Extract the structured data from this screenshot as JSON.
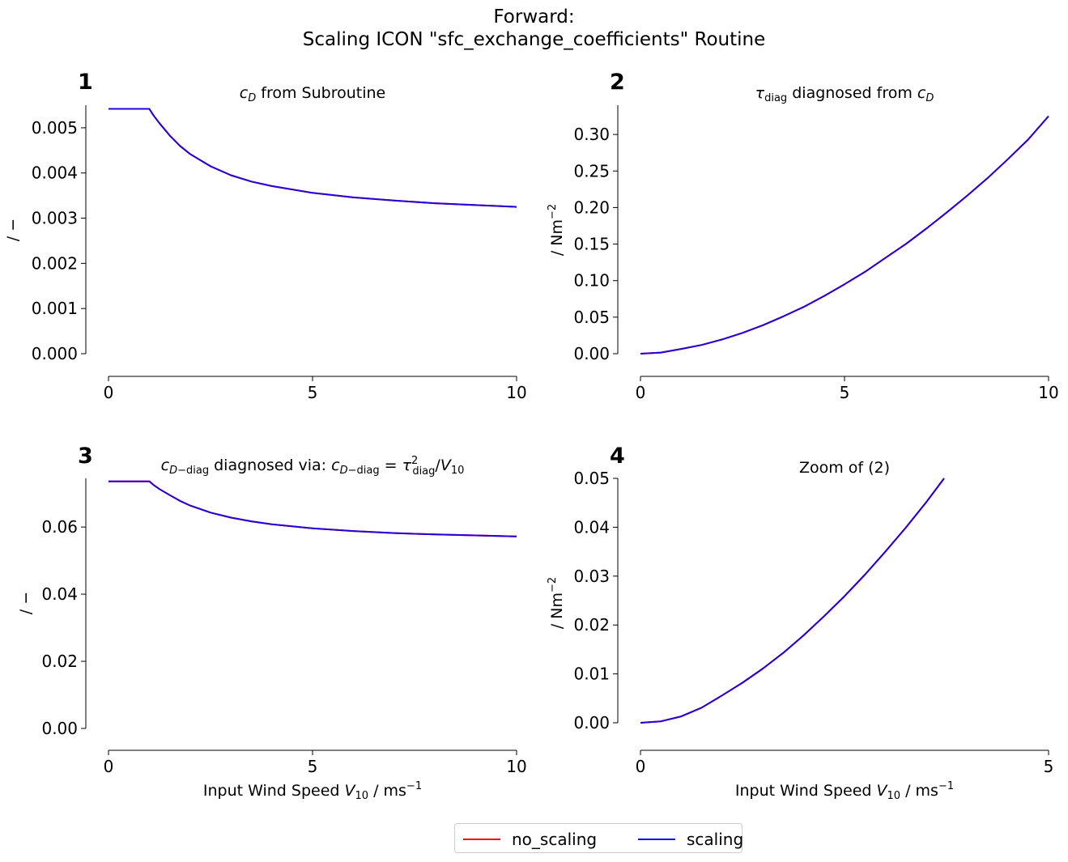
{
  "suptitle": {
    "line1": "Forward:",
    "line2": "Scaling ICON \"sfc_exchange_coefficients\" Routine"
  },
  "legend": {
    "items": [
      {
        "label": "no_scaling",
        "color": "#ff0000"
      },
      {
        "label": "scaling",
        "color": "#0000ff"
      }
    ],
    "overlap_color": "#2200dd"
  },
  "chart_data": [
    {
      "panel": "1",
      "type": "line",
      "title_html": "<tspan font-style='italic'>c</tspan><tspan font-style='italic' font-size='13' dy='4'>D</tspan><tspan dy='-4'> from Subroutine</tspan>",
      "xlabel": "",
      "ylabel": "/ −",
      "xlim": [
        0,
        10
      ],
      "ylim": [
        0,
        0.0055
      ],
      "xticks": [
        0,
        5,
        10
      ],
      "yticks": [
        0.0,
        0.001,
        0.002,
        0.003,
        0.004,
        0.005
      ],
      "ytick_labels": [
        "0.000",
        "0.001",
        "0.002",
        "0.003",
        "0.004",
        "0.005"
      ],
      "series": [
        {
          "name": "no_scaling",
          "x": [
            0,
            1,
            1.1,
            1.25,
            1.5,
            1.75,
            2,
            2.5,
            3,
            3.5,
            4,
            5,
            6,
            7,
            8,
            9,
            10
          ],
          "y": [
            0.00542,
            0.00542,
            0.00528,
            0.0051,
            0.00483,
            0.0046,
            0.00442,
            0.00415,
            0.00395,
            0.00381,
            0.00371,
            0.00356,
            0.00346,
            0.00339,
            0.00333,
            0.00329,
            0.00325
          ]
        },
        {
          "name": "scaling",
          "x": [
            0,
            1,
            1.1,
            1.25,
            1.5,
            1.75,
            2,
            2.5,
            3,
            3.5,
            4,
            5,
            6,
            7,
            8,
            9,
            10
          ],
          "y": [
            0.00542,
            0.00542,
            0.00528,
            0.0051,
            0.00483,
            0.0046,
            0.00442,
            0.00415,
            0.00395,
            0.00381,
            0.00371,
            0.00356,
            0.00346,
            0.00339,
            0.00333,
            0.00329,
            0.00325
          ]
        }
      ]
    },
    {
      "panel": "2",
      "type": "line",
      "title_html": "<tspan font-style='italic'>τ</tspan><tspan font-size='13' dy='4'>diag</tspan><tspan dy='-4'> diagnosed from </tspan><tspan font-style='italic'>c</tspan><tspan font-style='italic' font-size='13' dy='4'>D</tspan>",
      "xlabel": "",
      "ylabel_html": "/ Nm<tspan font-size='13' dy='-8'>−2</tspan>",
      "xlim": [
        0,
        10
      ],
      "ylim": [
        0,
        0.34
      ],
      "xticks": [
        0,
        5,
        10
      ],
      "yticks": [
        0.0,
        0.05,
        0.1,
        0.15,
        0.2,
        0.25,
        0.3
      ],
      "ytick_labels": [
        "0.00",
        "0.05",
        "0.10",
        "0.15",
        "0.20",
        "0.25",
        "0.30"
      ],
      "series": [
        {
          "name": "no_scaling",
          "x": [
            0,
            0.5,
            1,
            1.5,
            2,
            2.5,
            3,
            3.5,
            4,
            4.5,
            5,
            5.5,
            6,
            6.5,
            7,
            7.5,
            8,
            8.5,
            9,
            9.5,
            10
          ],
          "y": [
            0,
            0.0016,
            0.0065,
            0.012,
            0.0195,
            0.0285,
            0.039,
            0.051,
            0.064,
            0.079,
            0.095,
            0.112,
            0.131,
            0.15,
            0.171,
            0.193,
            0.216,
            0.24,
            0.266,
            0.293,
            0.325
          ]
        },
        {
          "name": "scaling",
          "x": [
            0,
            0.5,
            1,
            1.5,
            2,
            2.5,
            3,
            3.5,
            4,
            4.5,
            5,
            5.5,
            6,
            6.5,
            7,
            7.5,
            8,
            8.5,
            9,
            9.5,
            10
          ],
          "y": [
            0,
            0.0016,
            0.0065,
            0.012,
            0.0195,
            0.0285,
            0.039,
            0.051,
            0.064,
            0.079,
            0.095,
            0.112,
            0.131,
            0.15,
            0.171,
            0.193,
            0.216,
            0.24,
            0.266,
            0.293,
            0.325
          ]
        }
      ]
    },
    {
      "panel": "3",
      "type": "line",
      "title_html": "<tspan font-style='italic'>c</tspan><tspan font-style='italic' font-size='13' dy='4'>D−</tspan><tspan font-size='13'>diag</tspan><tspan dy='-4'> diagnosed via: </tspan><tspan font-style='italic'>c</tspan><tspan font-style='italic' font-size='13' dy='4'>D−</tspan><tspan font-size='13'>diag</tspan><tspan dy='-4'> = </tspan><tspan font-style='italic'>τ</tspan><tspan font-size='13' dy='-8'>2</tspan><tspan font-size='13' dx='-7' dy='13'>diag</tspan><tspan dy='-5'>/</tspan><tspan font-style='italic'>V</tspan><tspan font-size='13' dy='4'>10</tspan>",
      "xlabel_html": "Input Wind Speed <tspan font-style='italic'>V</tspan><tspan font-size='13' dy='4'>10</tspan><tspan dy='-4'> / ms</tspan><tspan font-size='13' dy='-8'>−1</tspan>",
      "ylabel": "/ −",
      "xlim": [
        0,
        10
      ],
      "ylim": [
        0,
        0.0745
      ],
      "xticks": [
        0,
        5,
        10
      ],
      "yticks": [
        0.0,
        0.02,
        0.04,
        0.06
      ],
      "ytick_labels": [
        "0.00",
        "0.02",
        "0.04",
        "0.06"
      ],
      "series": [
        {
          "name": "no_scaling",
          "x": [
            0,
            1,
            1.1,
            1.25,
            1.5,
            1.75,
            2,
            2.5,
            3,
            3.5,
            4,
            5,
            6,
            7,
            8,
            9,
            10
          ],
          "y": [
            0.0736,
            0.0736,
            0.0726,
            0.0713,
            0.0695,
            0.0678,
            0.0664,
            0.0643,
            0.0628,
            0.0617,
            0.0608,
            0.0596,
            0.0588,
            0.0582,
            0.0578,
            0.0575,
            0.0572
          ]
        },
        {
          "name": "scaling",
          "x": [
            0,
            1,
            1.1,
            1.25,
            1.5,
            1.75,
            2,
            2.5,
            3,
            3.5,
            4,
            5,
            6,
            7,
            8,
            9,
            10
          ],
          "y": [
            0.0736,
            0.0736,
            0.0726,
            0.0713,
            0.0695,
            0.0678,
            0.0664,
            0.0643,
            0.0628,
            0.0617,
            0.0608,
            0.0596,
            0.0588,
            0.0582,
            0.0578,
            0.0575,
            0.0572
          ]
        }
      ]
    },
    {
      "panel": "4",
      "type": "line",
      "title_html": "Zoom of (2)",
      "xlabel_html": "Input Wind Speed <tspan font-style='italic'>V</tspan><tspan font-size='13' dy='4'>10</tspan><tspan dy='-4'> / ms</tspan><tspan font-size='13' dy='-8'>−1</tspan>",
      "ylabel_html": "/ Nm<tspan font-size='13' dy='-8'>−2</tspan>",
      "xlim": [
        0,
        5
      ],
      "ylim": [
        0,
        0.05
      ],
      "xticks": [
        0,
        5
      ],
      "yticks": [
        0.0,
        0.01,
        0.02,
        0.03,
        0.04,
        0.05
      ],
      "ytick_labels": [
        "0.00",
        "0.01",
        "0.02",
        "0.03",
        "0.04",
        "0.05"
      ],
      "series": [
        {
          "name": "no_scaling",
          "x": [
            0,
            0.25,
            0.5,
            0.75,
            1,
            1.25,
            1.5,
            1.75,
            2,
            2.25,
            2.5,
            2.75,
            3,
            3.25,
            3.5,
            3.72
          ],
          "y": [
            0,
            0.0003,
            0.0013,
            0.0031,
            0.0056,
            0.0082,
            0.0111,
            0.0143,
            0.0179,
            0.0218,
            0.0259,
            0.0303,
            0.035,
            0.0399,
            0.0451,
            0.05
          ]
        },
        {
          "name": "scaling",
          "x": [
            0,
            0.25,
            0.5,
            0.75,
            1,
            1.25,
            1.5,
            1.75,
            2,
            2.25,
            2.5,
            2.75,
            3,
            3.25,
            3.5,
            3.72
          ],
          "y": [
            0,
            0.0003,
            0.0013,
            0.0031,
            0.0056,
            0.0082,
            0.0111,
            0.0143,
            0.0179,
            0.0218,
            0.0259,
            0.0303,
            0.035,
            0.0399,
            0.0451,
            0.05
          ]
        }
      ]
    }
  ]
}
